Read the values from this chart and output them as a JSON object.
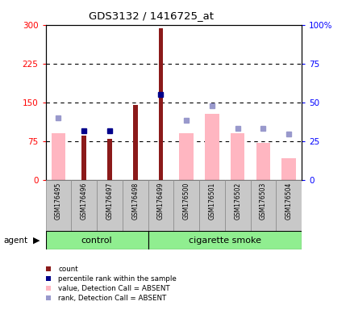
{
  "title": "GDS3132 / 1416725_at",
  "samples": [
    "GSM176495",
    "GSM176496",
    "GSM176497",
    "GSM176498",
    "GSM176499",
    "GSM176500",
    "GSM176501",
    "GSM176502",
    "GSM176503",
    "GSM176504"
  ],
  "red_bars": [
    0,
    85,
    80,
    145,
    293,
    0,
    0,
    0,
    0,
    0
  ],
  "pink_bars": [
    90,
    0,
    0,
    0,
    0,
    90,
    128,
    90,
    72,
    42
  ],
  "blue_markers": [
    null,
    95,
    95,
    null,
    165,
    null,
    null,
    null,
    null,
    null
  ],
  "lightblue_markers": [
    120,
    null,
    null,
    null,
    null,
    115,
    143,
    100,
    100,
    88
  ],
  "ylim_left": [
    0,
    300
  ],
  "ylim_right": [
    0,
    100
  ],
  "yticks_left": [
    0,
    75,
    150,
    225,
    300
  ],
  "ytick_labels_left": [
    "0",
    "75",
    "150",
    "225",
    "300"
  ],
  "yticks_right": [
    0,
    25,
    50,
    75,
    100
  ],
  "ytick_labels_right": [
    "0",
    "25",
    "50",
    "75",
    "100%"
  ],
  "hlines": [
    75,
    150,
    225
  ],
  "red_color": "#8B1A1A",
  "pink_color": "#FFB6C1",
  "blue_color": "#00008B",
  "lightblue_color": "#9999CC",
  "green_color": "#90EE90",
  "gray_color": "#C8C8C8",
  "control_count": 4,
  "smoke_count": 6,
  "agent_label": "agent",
  "control_label": "control",
  "smoke_label": "cigarette smoke",
  "legend_items": [
    "count",
    "percentile rank within the sample",
    "value, Detection Call = ABSENT",
    "rank, Detection Call = ABSENT"
  ],
  "legend_colors": [
    "#8B1A1A",
    "#00008B",
    "#FFB6C1",
    "#9999CC"
  ]
}
